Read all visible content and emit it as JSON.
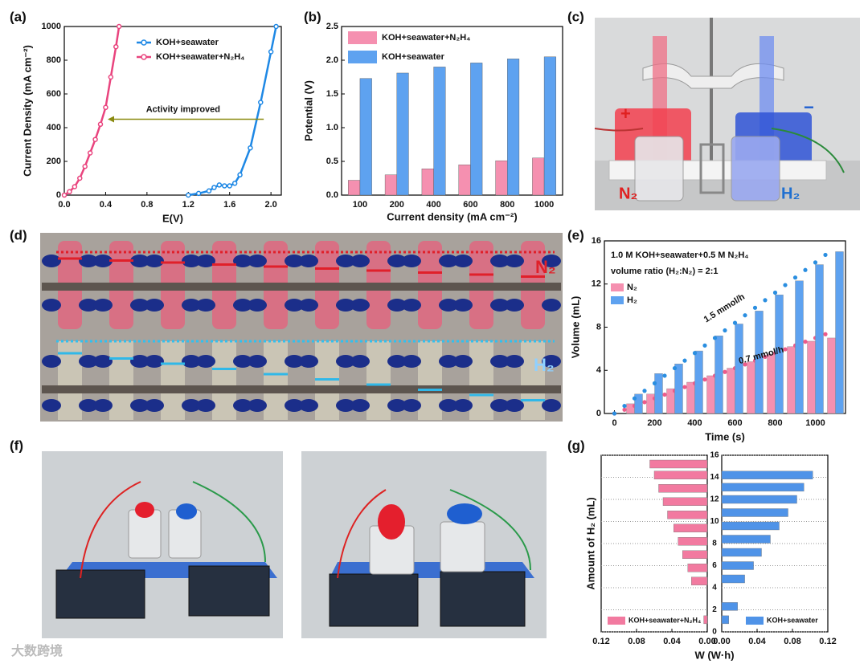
{
  "watermark": "大数跨境",
  "photos": [
    {
      "label": "(c)",
      "texts": [
        "+",
        "−",
        "N₂",
        "H₂"
      ]
    },
    {
      "label": "(d)",
      "texts": [
        "N₂",
        "H₂"
      ]
    },
    {
      "label": "(f)"
    }
  ],
  "chart_data": [
    {
      "type": "line",
      "label": "(a)",
      "xlabel": "E(V)",
      "ylabel": "Current Density (mA cm⁻²)",
      "annotation": "Activity improved",
      "legend": "upper right",
      "xlim": [
        0,
        2.1
      ],
      "xticks": [
        {
          "value": 0,
          "label": "0.0"
        },
        0.4,
        0.8,
        1.2,
        1.6,
        {
          "value": 2,
          "label": "2.0"
        }
      ],
      "ylim": [
        0,
        1000
      ],
      "yticks": [
        0,
        200,
        400,
        600,
        800,
        1000
      ],
      "series": [
        {
          "name": "KOH+seawater",
          "color": "#1e88e5",
          "x": [
            1.2,
            1.3,
            1.4,
            1.45,
            1.5,
            1.55,
            1.6,
            1.65,
            1.7,
            1.8,
            1.9,
            2.0,
            2.05
          ],
          "values": [
            0,
            10,
            25,
            45,
            60,
            55,
            55,
            70,
            120,
            280,
            550,
            850,
            1000
          ]
        },
        {
          "name": "KOH+seawater+N₂H₄",
          "color": "#e9447e",
          "x": [
            0,
            0.05,
            0.1,
            0.15,
            0.2,
            0.25,
            0.3,
            0.35,
            0.4,
            0.45,
            0.5,
            0.53
          ],
          "values": [
            0,
            20,
            50,
            100,
            170,
            250,
            330,
            420,
            520,
            700,
            880,
            1000
          ]
        }
      ]
    },
    {
      "type": "bar",
      "label": "(b)",
      "xlabel": "Current density (mA cm⁻²)",
      "ylabel": "Potential (V)",
      "legend": "upper left",
      "categories": [
        "100",
        "200",
        "400",
        "600",
        "800",
        "1000"
      ],
      "ylim": [
        0,
        2.5
      ],
      "yticks": [
        {
          "value": 0,
          "label": "0.0"
        },
        0.5,
        {
          "value": 1,
          "label": "1.0"
        },
        1.5,
        {
          "value": 2,
          "label": "2.0"
        },
        2.5
      ],
      "series": [
        {
          "name": "KOH+seawater+N₂H₄",
          "color": "#f590b0",
          "values": [
            0.22,
            0.3,
            0.39,
            0.45,
            0.51,
            0.55
          ]
        },
        {
          "name": "KOH+seawater",
          "color": "#5ea2f0",
          "values": [
            1.73,
            1.81,
            1.9,
            1.96,
            2.02,
            2.05
          ]
        }
      ]
    },
    {
      "type": "combo",
      "label": "(e)",
      "xlabel": "Time (s)",
      "ylabel": "Volume (mL)",
      "legend": "upper left",
      "annotations": [
        "1.0 M KOH+seawater+0.5 M N₂H₄",
        "volume ratio (H₂:N₂) = 2:1",
        "1.5 mmol/h",
        "0.7 mmol/h"
      ],
      "xlim": [
        -50,
        1150
      ],
      "xticks": [
        0,
        200,
        400,
        600,
        800,
        1000
      ],
      "ylim": [
        0,
        16
      ],
      "yticks": [
        0,
        4,
        8,
        12,
        16
      ],
      "x": [
        0,
        100,
        200,
        300,
        400,
        500,
        600,
        700,
        800,
        900,
        1000,
        1100
      ],
      "series": [
        {
          "name": "N₂",
          "color": "#f590b0",
          "values": [
            0,
            0.9,
            1.8,
            2.3,
            2.9,
            3.5,
            4.2,
            4.8,
            5.5,
            6.2,
            6.7,
            7.0
          ],
          "dots": {
            "x": [
              0,
              50,
              100,
              150,
              200,
              250,
              300,
              350,
              400,
              450,
              500,
              550,
              600,
              650,
              700,
              750,
              800,
              850,
              900,
              950,
              1000,
              1050
            ],
            "values": [
              0,
              0.35,
              0.7,
              1.05,
              1.4,
              1.75,
              2.1,
              2.45,
              2.8,
              3.15,
              3.5,
              3.85,
              4.2,
              4.55,
              4.9,
              5.25,
              5.6,
              5.95,
              6.3,
              6.65,
              7.0,
              7.35
            ]
          }
        },
        {
          "name": "H₂",
          "color": "#5ea2f0",
          "values": [
            0,
            1.8,
            3.7,
            4.6,
            5.8,
            7.2,
            8.3,
            9.5,
            11.0,
            12.3,
            13.8,
            15.0
          ],
          "dots": {
            "x": [
              0,
              50,
              100,
              150,
              200,
              250,
              300,
              350,
              400,
              450,
              500,
              550,
              600,
              650,
              700,
              750,
              800,
              850,
              900,
              950,
              1000,
              1050
            ],
            "values": [
              0,
              0.7,
              1.4,
              2.1,
              2.8,
              3.5,
              4.2,
              4.9,
              5.6,
              6.3,
              7.0,
              7.7,
              8.4,
              9.1,
              9.8,
              10.5,
              11.2,
              11.9,
              12.6,
              13.3,
              14.0,
              14.7
            ]
          }
        }
      ]
    },
    {
      "type": "barh",
      "label": "(g)",
      "xlabel": "W (W·h)",
      "ylabel": "Amount of H₂ (mL)",
      "grid": true,
      "ylim": [
        0,
        16
      ],
      "yticks": [
        0,
        2,
        4,
        6,
        8,
        10,
        12,
        14,
        16
      ],
      "series": [
        {
          "name": "KOH+seawater+N₂H₄",
          "color": "#f27aa0",
          "xlim": [
            0.12,
            0
          ],
          "xticks": [
            0.12,
            0.08,
            0.04,
            {
              "value": 0,
              "label": "0.00"
            }
          ],
          "y": [
            1.1,
            4.6,
            5.8,
            7.0,
            8.2,
            9.4,
            10.6,
            11.8,
            13.0,
            14.2,
            15.2
          ],
          "values": [
            0.004,
            0.018,
            0.022,
            0.028,
            0.033,
            0.038,
            0.045,
            0.05,
            0.055,
            0.06,
            0.065
          ]
        },
        {
          "name": "KOH+seawater",
          "color": "#4f93e8",
          "xlim": [
            0,
            0.12
          ],
          "xticks": [
            {
              "value": 0,
              "label": "0.00"
            },
            0.04,
            0.08,
            0.12
          ],
          "y": [
            1.1,
            2.3,
            4.8,
            6.0,
            7.2,
            8.4,
            9.6,
            10.8,
            12.0,
            13.1,
            14.2
          ],
          "values": [
            0.008,
            0.018,
            0.026,
            0.036,
            0.045,
            0.055,
            0.065,
            0.075,
            0.085,
            0.093,
            0.103
          ]
        }
      ]
    }
  ]
}
